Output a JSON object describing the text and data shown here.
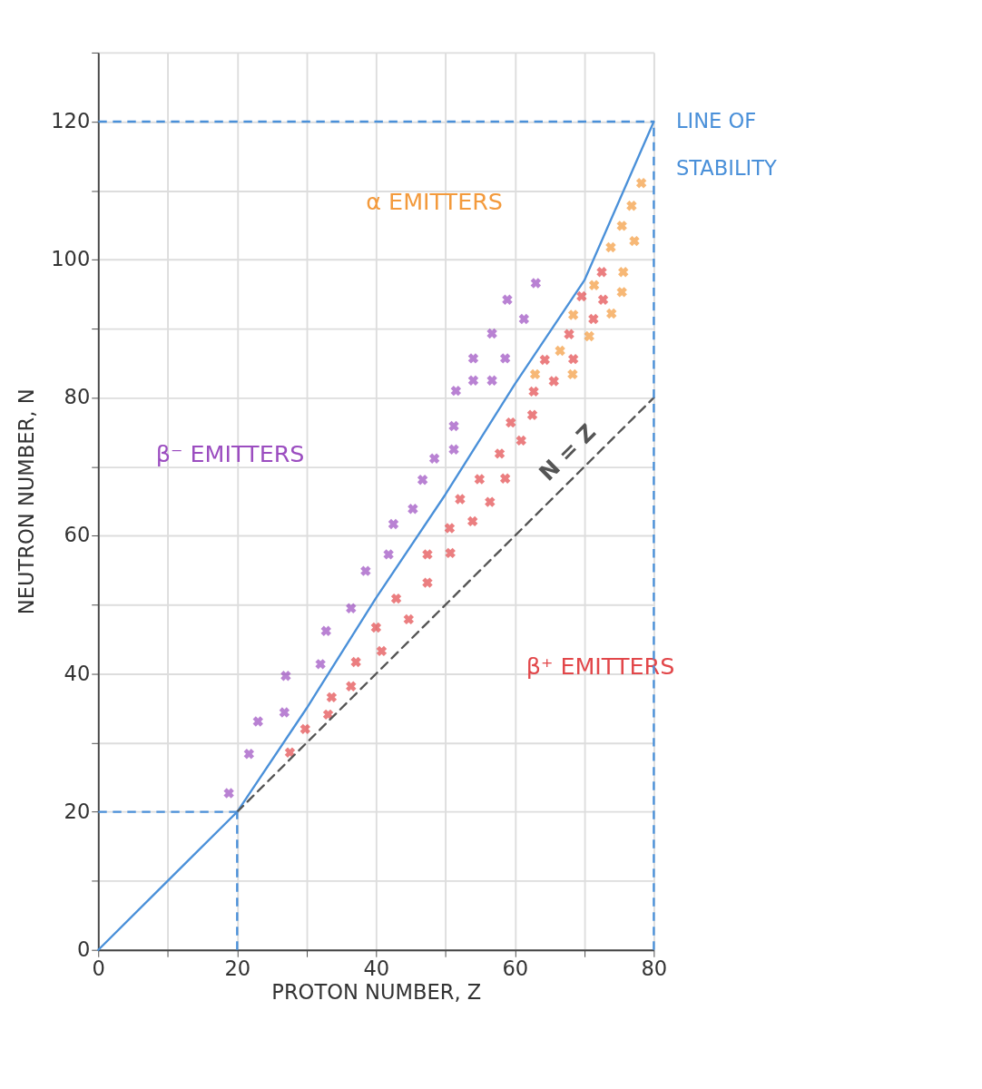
{
  "chart_data": {
    "type": "scatter",
    "xlabel": "PROTON NUMBER, Z",
    "ylabel": "NEUTRON NUMBER, N",
    "xlim": [
      0,
      80
    ],
    "ylim": [
      0,
      130
    ],
    "xticks": [
      0,
      {
        "value": 10,
        "label": null
      },
      20,
      {
        "value": 30,
        "label": null
      },
      40,
      {
        "value": 50,
        "label": null
      },
      60,
      {
        "value": 70,
        "label": null
      },
      80
    ],
    "yticks": [
      0,
      {
        "value": 10,
        "label": null
      },
      20,
      {
        "value": 30,
        "label": null
      },
      40,
      {
        "value": 50,
        "label": null
      },
      60,
      {
        "value": 70,
        "label": null
      },
      80,
      {
        "value": 90,
        "label": null
      },
      100,
      {
        "value": 110,
        "label": null
      },
      120,
      {
        "value": 130,
        "label": null
      }
    ],
    "grid": true,
    "legend": false,
    "marker": "cross",
    "series": [
      {
        "name": "β⁻ EMITTERS",
        "color": "#9b4dc0",
        "x": [
          18.8,
          21.7,
          23.0,
          26.8,
          27.0,
          32.0,
          32.8,
          36.4,
          38.5,
          41.8,
          42.5,
          45.3,
          46.7,
          48.4,
          51.2,
          51.2,
          51.5,
          54.0,
          54.0,
          56.7,
          56.7,
          58.6,
          58.9,
          61.3,
          63.0
        ],
        "values": [
          22.7,
          28.4,
          33.1,
          34.4,
          39.7,
          41.4,
          46.2,
          49.5,
          54.9,
          57.3,
          61.7,
          63.9,
          68.1,
          71.2,
          72.5,
          75.9,
          81.0,
          82.5,
          85.7,
          82.5,
          89.3,
          85.7,
          94.2,
          91.4,
          96.6
        ]
      },
      {
        "name": "β⁺ EMITTERS",
        "color": "#e2474a",
        "x": [
          27.6,
          29.8,
          33.1,
          33.6,
          36.4,
          37.1,
          40.8,
          40.0,
          44.7,
          42.9,
          47.4,
          47.4,
          50.7,
          50.6,
          52.1,
          53.9,
          56.4,
          54.9,
          58.6,
          57.8,
          60.9,
          59.4,
          62.5,
          62.7,
          65.6,
          64.3,
          68.4,
          67.8,
          71.3,
          69.6,
          72.7,
          72.5
        ],
        "values": [
          28.6,
          32.0,
          34.1,
          36.6,
          38.2,
          41.7,
          43.3,
          46.7,
          47.9,
          50.9,
          53.2,
          57.3,
          57.5,
          61.1,
          65.3,
          62.1,
          64.9,
          68.2,
          68.3,
          71.9,
          73.8,
          76.4,
          77.5,
          80.9,
          82.4,
          85.5,
          85.6,
          89.2,
          91.4,
          94.7,
          94.2,
          98.2
        ]
      },
      {
        "name": "α EMITTERS",
        "color": "#f39a3c",
        "x": [
          62.9,
          66.5,
          68.3,
          70.7,
          68.4,
          71.4,
          73.9,
          75.4,
          75.6,
          73.8,
          77.2,
          75.4,
          76.8,
          78.2
        ],
        "values": [
          83.4,
          86.8,
          83.4,
          88.9,
          92.0,
          96.3,
          92.2,
          95.3,
          98.2,
          101.8,
          102.7,
          104.9,
          107.8,
          111.1
        ]
      },
      {
        "name": "LINE OF STABILITY",
        "type": "line",
        "marker": "none",
        "color": "#4a90d9",
        "line_style": "solid",
        "x": [
          0,
          10,
          20,
          30,
          40,
          50,
          60,
          70,
          80
        ],
        "values": [
          0,
          10,
          20,
          35,
          51,
          66,
          82,
          97,
          120
        ]
      },
      {
        "name": "N = Z",
        "type": "line",
        "marker": "none",
        "color": "#555555",
        "line_style": "dashed",
        "x": [
          20,
          80
        ],
        "values": [
          20,
          80
        ]
      }
    ],
    "ref_lines": [
      {
        "axis": "y",
        "value": 120,
        "color": "#4a90d9",
        "line_style": "dashed"
      },
      {
        "axis": "y",
        "value": 20,
        "color": "#4a90d9",
        "line_style": "dashed"
      },
      {
        "axis": "x",
        "value": 20,
        "color": "#4a90d9",
        "line_style": "dashed"
      },
      {
        "axis": "x",
        "value": 80,
        "color": "#4a90d9",
        "line_style": "dashed"
      }
    ]
  }
}
